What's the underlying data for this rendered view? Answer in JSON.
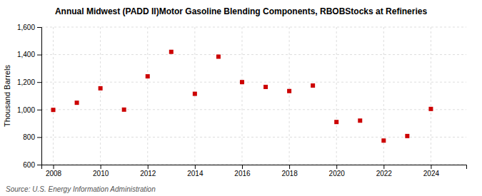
{
  "chart_data": {
    "type": "scatter",
    "title": "Annual Midwest (PADD II)Motor Gasoline Blending Components, RBOBStocks at Refineries",
    "ylabel": "Thousand Barrels",
    "annotations": [
      "Source: U.S. Energy Information Administration"
    ],
    "x": [
      2008,
      2009,
      2010,
      2011,
      2012,
      2013,
      2014,
      2015,
      2016,
      2017,
      2018,
      2019,
      2020,
      2021,
      2022,
      2023,
      2024
    ],
    "values": [
      998,
      1050,
      1155,
      1000,
      1242,
      1420,
      1115,
      1385,
      1200,
      1165,
      1135,
      1175,
      910,
      920,
      775,
      808,
      1005
    ],
    "color": "#cc0000",
    "marker": "square",
    "xlim": [
      2007.5,
      2025.5
    ],
    "xticks": [
      2008,
      2010,
      2012,
      2014,
      2016,
      2018,
      2020,
      2022,
      2024
    ],
    "ylim": [
      600,
      1600
    ],
    "yticks": [
      600,
      800,
      {
        "value": 1000,
        "label": "1,000"
      },
      {
        "value": 1200,
        "label": "1,200"
      },
      {
        "value": 1400,
        "label": "1,400"
      },
      {
        "value": 1600,
        "label": "1,600"
      }
    ],
    "grid": true
  }
}
